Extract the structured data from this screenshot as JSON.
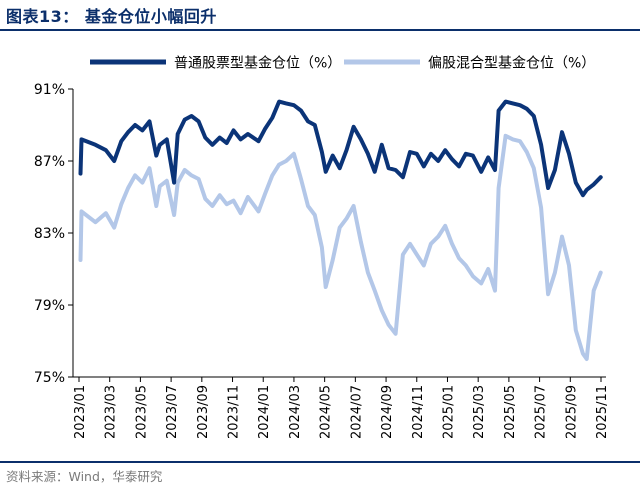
{
  "figure": {
    "title": "图表13：   基金仓位小幅回升",
    "source": "资料来源：Wind，华泰研究"
  },
  "colors": {
    "title": "#0b2f6b",
    "series_primary": "#0b3478",
    "series_secondary": "#b3c7e8",
    "axis": "#000000",
    "source_text": "#7a7a7a"
  },
  "chart_data": {
    "type": "line",
    "title": "基金仓位小幅回升",
    "xlabel": "",
    "ylabel": "",
    "ylim": [
      75,
      91
    ],
    "y_ticks": [
      75,
      79,
      83,
      87,
      91
    ],
    "y_tick_labels": [
      "75%",
      "79%",
      "83%",
      "87%",
      "91%"
    ],
    "x_ticks": [
      "2023/01",
      "2023/03",
      "2023/05",
      "2023/07",
      "2023/09",
      "2023/11",
      "2024/01",
      "2024/03",
      "2024/05",
      "2024/07",
      "2024/09",
      "2024/11",
      "2025/01",
      "2025/03",
      "2025/05",
      "2025/07",
      "2025/09",
      "2025/11"
    ],
    "grid": false,
    "legend": "top",
    "series": [
      {
        "name": "普通股票型基金仓位（%）",
        "color": "#0b3478",
        "points": [
          [
            "2023-01-04",
            86.3
          ],
          [
            "2023-01-06",
            88.2
          ],
          [
            "2023-02-03",
            87.9
          ],
          [
            "2023-02-24",
            87.6
          ],
          [
            "2023-03-10",
            87.0
          ],
          [
            "2023-03-24",
            88.1
          ],
          [
            "2023-04-07",
            88.6
          ],
          [
            "2023-04-21",
            89.0
          ],
          [
            "2023-05-05",
            88.7
          ],
          [
            "2023-05-19",
            89.2
          ],
          [
            "2023-06-02",
            87.3
          ],
          [
            "2023-06-09",
            87.9
          ],
          [
            "2023-06-23",
            88.2
          ],
          [
            "2023-07-07",
            85.8
          ],
          [
            "2023-07-14",
            88.5
          ],
          [
            "2023-07-28",
            89.3
          ],
          [
            "2023-08-11",
            89.5
          ],
          [
            "2023-08-25",
            89.2
          ],
          [
            "2023-09-08",
            88.3
          ],
          [
            "2023-09-22",
            87.9
          ],
          [
            "2023-10-06",
            88.3
          ],
          [
            "2023-10-20",
            88.0
          ],
          [
            "2023-11-03",
            88.7
          ],
          [
            "2023-11-17",
            88.2
          ],
          [
            "2023-12-01",
            88.5
          ],
          [
            "2023-12-22",
            88.1
          ],
          [
            "2024-01-05",
            88.8
          ],
          [
            "2024-01-19",
            89.4
          ],
          [
            "2024-02-02",
            90.3
          ],
          [
            "2024-02-16",
            90.2
          ],
          [
            "2024-03-01",
            90.1
          ],
          [
            "2024-03-15",
            89.8
          ],
          [
            "2024-03-29",
            89.2
          ],
          [
            "2024-04-12",
            89.0
          ],
          [
            "2024-04-26",
            87.5
          ],
          [
            "2024-05-03",
            86.4
          ],
          [
            "2024-05-17",
            87.3
          ],
          [
            "2024-05-31",
            86.6
          ],
          [
            "2024-06-14",
            87.6
          ],
          [
            "2024-06-28",
            88.9
          ],
          [
            "2024-07-12",
            88.2
          ],
          [
            "2024-07-26",
            87.4
          ],
          [
            "2024-08-09",
            86.4
          ],
          [
            "2024-08-23",
            87.9
          ],
          [
            "2024-09-06",
            86.6
          ],
          [
            "2024-09-20",
            86.5
          ],
          [
            "2024-10-04",
            86.1
          ],
          [
            "2024-10-18",
            87.5
          ],
          [
            "2024-11-01",
            87.4
          ],
          [
            "2024-11-15",
            86.7
          ],
          [
            "2024-11-29",
            87.4
          ],
          [
            "2024-12-13",
            87.0
          ],
          [
            "2024-12-27",
            87.6
          ],
          [
            "2025-01-10",
            87.1
          ],
          [
            "2025-01-24",
            86.7
          ],
          [
            "2025-02-07",
            87.4
          ],
          [
            "2025-02-21",
            87.3
          ],
          [
            "2025-03-07",
            86.4
          ],
          [
            "2025-03-21",
            87.2
          ],
          [
            "2025-04-04",
            86.5
          ],
          [
            "2025-04-11",
            89.8
          ],
          [
            "2025-04-25",
            90.3
          ],
          [
            "2025-05-09",
            90.2
          ],
          [
            "2025-05-23",
            90.1
          ],
          [
            "2025-06-06",
            89.9
          ],
          [
            "2025-06-20",
            89.5
          ],
          [
            "2025-07-04",
            87.9
          ],
          [
            "2025-07-18",
            85.5
          ],
          [
            "2025-08-01",
            86.5
          ],
          [
            "2025-08-15",
            88.6
          ],
          [
            "2025-08-29",
            87.4
          ],
          [
            "2025-09-12",
            85.8
          ],
          [
            "2025-09-26",
            85.1
          ],
          [
            "2025-10-03",
            85.4
          ],
          [
            "2025-10-17",
            85.7
          ],
          [
            "2025-10-31",
            86.1
          ]
        ]
      },
      {
        "name": "偏股混合型基金仓位（%）",
        "color": "#b3c7e8",
        "points": [
          [
            "2023-01-04",
            81.5
          ],
          [
            "2023-01-06",
            84.2
          ],
          [
            "2023-02-03",
            83.6
          ],
          [
            "2023-02-24",
            84.1
          ],
          [
            "2023-03-10",
            83.3
          ],
          [
            "2023-03-24",
            84.6
          ],
          [
            "2023-04-07",
            85.5
          ],
          [
            "2023-04-21",
            86.2
          ],
          [
            "2023-05-05",
            85.8
          ],
          [
            "2023-05-19",
            86.6
          ],
          [
            "2023-06-02",
            84.5
          ],
          [
            "2023-06-09",
            85.6
          ],
          [
            "2023-06-23",
            85.9
          ],
          [
            "2023-07-07",
            84.0
          ],
          [
            "2023-07-14",
            85.8
          ],
          [
            "2023-07-28",
            86.5
          ],
          [
            "2023-08-11",
            86.2
          ],
          [
            "2023-08-25",
            86.0
          ],
          [
            "2023-09-08",
            84.9
          ],
          [
            "2023-09-22",
            84.5
          ],
          [
            "2023-10-06",
            85.1
          ],
          [
            "2023-10-20",
            84.6
          ],
          [
            "2023-11-03",
            84.8
          ],
          [
            "2023-11-17",
            84.1
          ],
          [
            "2023-12-01",
            85.0
          ],
          [
            "2023-12-22",
            84.2
          ],
          [
            "2024-01-05",
            85.2
          ],
          [
            "2024-01-19",
            86.2
          ],
          [
            "2024-02-02",
            86.8
          ],
          [
            "2024-02-16",
            87.0
          ],
          [
            "2024-03-01",
            87.4
          ],
          [
            "2024-03-15",
            86.0
          ],
          [
            "2024-03-29",
            84.5
          ],
          [
            "2024-04-12",
            84.0
          ],
          [
            "2024-04-26",
            82.2
          ],
          [
            "2024-05-03",
            80.0
          ],
          [
            "2024-05-17",
            81.5
          ],
          [
            "2024-05-31",
            83.3
          ],
          [
            "2024-06-14",
            83.8
          ],
          [
            "2024-06-28",
            84.5
          ],
          [
            "2024-07-12",
            82.5
          ],
          [
            "2024-07-26",
            80.8
          ],
          [
            "2024-08-09",
            79.8
          ],
          [
            "2024-08-23",
            78.7
          ],
          [
            "2024-09-06",
            77.9
          ],
          [
            "2024-09-20",
            77.4
          ],
          [
            "2024-10-04",
            81.8
          ],
          [
            "2024-10-18",
            82.4
          ],
          [
            "2024-11-01",
            81.8
          ],
          [
            "2024-11-15",
            81.2
          ],
          [
            "2024-11-29",
            82.4
          ],
          [
            "2024-12-13",
            82.8
          ],
          [
            "2024-12-27",
            83.4
          ],
          [
            "2025-01-10",
            82.4
          ],
          [
            "2025-01-24",
            81.6
          ],
          [
            "2025-02-07",
            81.2
          ],
          [
            "2025-02-21",
            80.6
          ],
          [
            "2025-03-07",
            80.2
          ],
          [
            "2025-03-21",
            81.0
          ],
          [
            "2025-04-04",
            79.8
          ],
          [
            "2025-04-11",
            85.5
          ],
          [
            "2025-04-25",
            88.4
          ],
          [
            "2025-05-09",
            88.2
          ],
          [
            "2025-05-23",
            88.1
          ],
          [
            "2025-06-06",
            87.5
          ],
          [
            "2025-06-20",
            86.6
          ],
          [
            "2025-07-04",
            84.4
          ],
          [
            "2025-07-18",
            79.6
          ],
          [
            "2025-08-01",
            80.8
          ],
          [
            "2025-08-15",
            82.8
          ],
          [
            "2025-08-29",
            81.2
          ],
          [
            "2025-09-12",
            77.6
          ],
          [
            "2025-09-26",
            76.3
          ],
          [
            "2025-10-03",
            76.0
          ],
          [
            "2025-10-17",
            79.8
          ],
          [
            "2025-10-31",
            80.8
          ]
        ]
      }
    ]
  }
}
